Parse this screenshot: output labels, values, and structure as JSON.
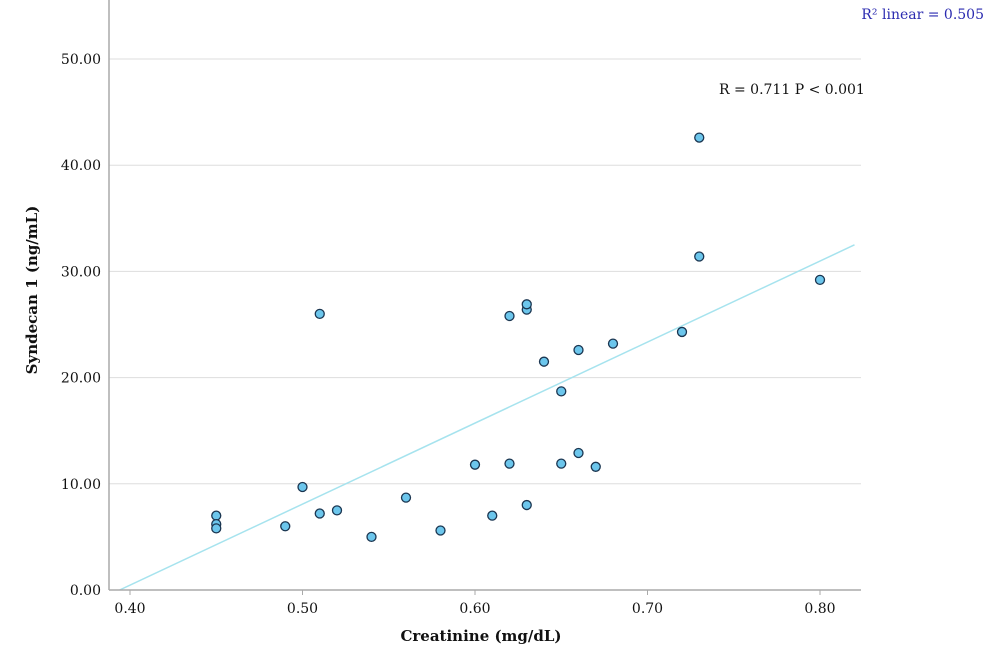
{
  "chart_data": {
    "type": "scatter",
    "title": "",
    "xlabel": "Creatinine (mg/dL)",
    "ylabel": "Syndecan 1 (ng/mL)",
    "xlim": [
      0.38,
      0.82
    ],
    "ylim": [
      0,
      55
    ],
    "x_ticks": [
      0.4,
      0.5,
      0.6,
      0.7,
      0.8
    ],
    "x_tick_labels": [
      "0.40",
      "0.50",
      "0.60",
      "0.70",
      "0.80"
    ],
    "y_ticks": [
      0,
      10,
      20,
      30,
      40,
      50
    ],
    "y_tick_labels": [
      "0.00",
      "10.00",
      "20.00",
      "30.00",
      "40.00",
      "50.00"
    ],
    "grid": "horizontal",
    "points": [
      {
        "x": 0.45,
        "y": 7.0
      },
      {
        "x": 0.45,
        "y": 6.2
      },
      {
        "x": 0.45,
        "y": 5.8
      },
      {
        "x": 0.49,
        "y": 6.0
      },
      {
        "x": 0.5,
        "y": 9.7
      },
      {
        "x": 0.51,
        "y": 7.2
      },
      {
        "x": 0.51,
        "y": 26.0
      },
      {
        "x": 0.52,
        "y": 7.5
      },
      {
        "x": 0.54,
        "y": 5.0
      },
      {
        "x": 0.56,
        "y": 8.7
      },
      {
        "x": 0.58,
        "y": 5.6
      },
      {
        "x": 0.6,
        "y": 11.8
      },
      {
        "x": 0.61,
        "y": 7.0
      },
      {
        "x": 0.62,
        "y": 11.9
      },
      {
        "x": 0.62,
        "y": 25.8
      },
      {
        "x": 0.63,
        "y": 8.0
      },
      {
        "x": 0.63,
        "y": 26.4
      },
      {
        "x": 0.63,
        "y": 26.9
      },
      {
        "x": 0.64,
        "y": 21.5
      },
      {
        "x": 0.65,
        "y": 11.9
      },
      {
        "x": 0.65,
        "y": 18.7
      },
      {
        "x": 0.66,
        "y": 12.9
      },
      {
        "x": 0.66,
        "y": 22.6
      },
      {
        "x": 0.67,
        "y": 11.6
      },
      {
        "x": 0.68,
        "y": 23.2
      },
      {
        "x": 0.72,
        "y": 24.3
      },
      {
        "x": 0.73,
        "y": 31.4
      },
      {
        "x": 0.73,
        "y": 42.6
      },
      {
        "x": 0.8,
        "y": 29.2
      }
    ],
    "fit_line": {
      "x": [
        0.394,
        0.82
      ],
      "y": [
        0.0,
        32.5
      ]
    },
    "annotations": {
      "correlation": "R = 0.711 P < 0.001",
      "r2_label": "R² linear = 0.505"
    },
    "colors": {
      "point_fill": "#6cc6ec",
      "point_stroke": "#1a3550",
      "fit_line": "#a6e3ee",
      "gridline": "#dddddd",
      "axis": "#aaaaaa",
      "r2_text": "#2b2bb0"
    }
  }
}
